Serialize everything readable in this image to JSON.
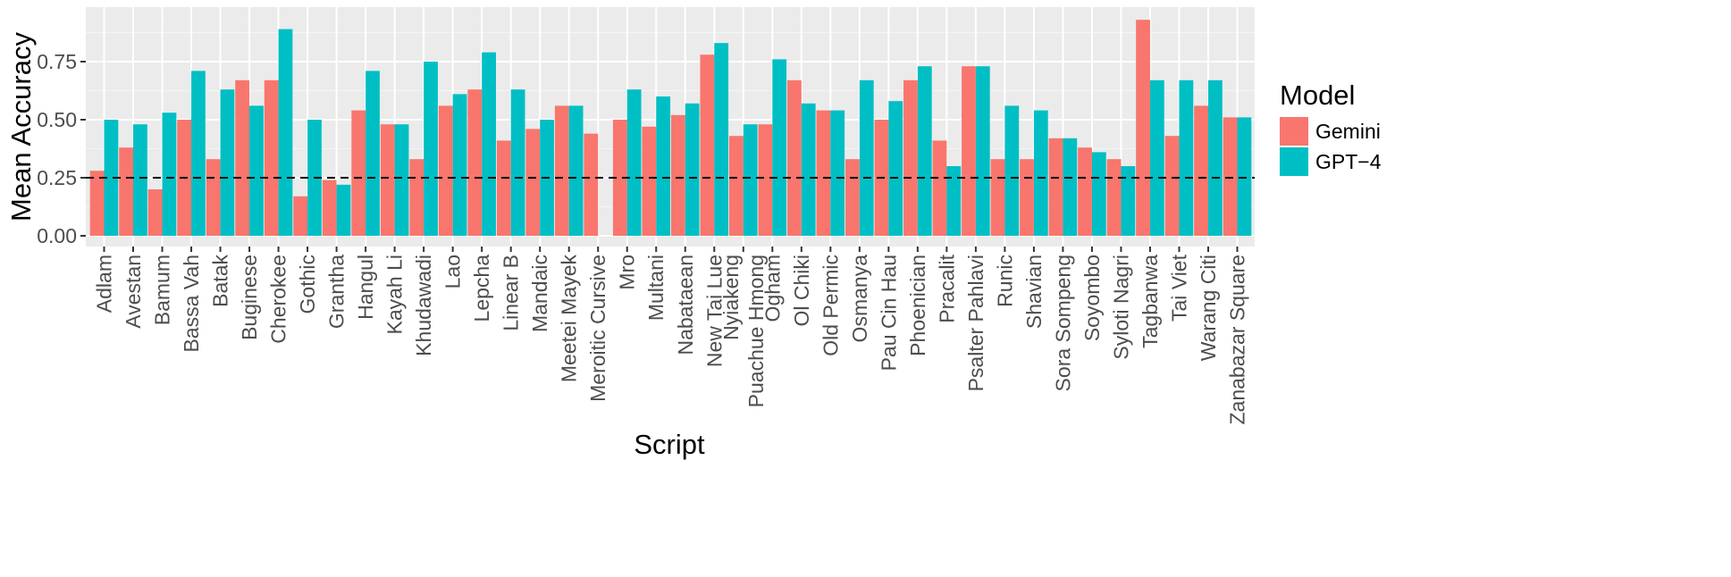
{
  "chart_data": {
    "type": "bar",
    "xlabel": "Script",
    "ylabel": "Mean Accuracy",
    "ylim": [
      -0.02,
      0.95
    ],
    "yticks": [
      0.0,
      0.25,
      0.5,
      0.75
    ],
    "ytick_labels": [
      "0.00",
      "0.25",
      "0.50",
      "0.75"
    ],
    "reference_line": 0.25,
    "grid": true,
    "legend_title": "Model",
    "legend_position": "right",
    "categories": [
      "Adlam",
      "Avestan",
      "Bamum",
      "Bassa Vah",
      "Batak",
      "Buginese",
      "Cherokee",
      "Gothic",
      "Grantha",
      "Hangul",
      "Kayah Li",
      "Khudawadi",
      "Lao",
      "Lepcha",
      "Linear B",
      "Mandaic",
      "Meetei Mayek",
      "Meroitic Cursive",
      "Mro",
      "Multani",
      "Nabataean",
      "New Tai Lue",
      "Nyiakeng Puachue Hmong",
      "Ogham",
      "Ol Chiki",
      "Old Permic",
      "Osmanya",
      "Pau Cin Hau",
      "Phoenician",
      "Pracalit",
      "Psalter Pahlavi",
      "Runic",
      "Shavian",
      "Sora Sompeng",
      "Soyombo",
      "Syloti Nagri",
      "Tagbanwa",
      "Tai Viet",
      "Warang Citi",
      "Zanabazar Square"
    ],
    "series": [
      {
        "name": "Gemini",
        "color": "#F8766D",
        "values": [
          0.28,
          0.38,
          0.2,
          0.5,
          0.33,
          0.67,
          0.67,
          0.17,
          0.24,
          0.54,
          0.48,
          0.33,
          0.56,
          0.63,
          0.41,
          0.46,
          0.56,
          0.44,
          0.5,
          0.47,
          0.52,
          0.78,
          0.43,
          0.48,
          0.67,
          0.54,
          0.33,
          0.5,
          0.67,
          0.41,
          0.73,
          0.33,
          0.33,
          0.42,
          0.38,
          0.33,
          0.93,
          0.43,
          0.56,
          0.51
        ]
      },
      {
        "name": "GPT−4",
        "color": "#00BFC4",
        "values": [
          0.5,
          0.48,
          0.53,
          0.71,
          0.63,
          0.56,
          0.89,
          0.5,
          0.22,
          0.71,
          0.48,
          0.75,
          0.61,
          0.79,
          0.63,
          0.5,
          0.56,
          0.0,
          0.63,
          0.6,
          0.57,
          0.83,
          0.48,
          0.76,
          0.57,
          0.54,
          0.67,
          0.58,
          0.73,
          0.3,
          0.73,
          0.56,
          0.54,
          0.42,
          0.36,
          0.3,
          0.67,
          0.67,
          0.67,
          0.51
        ]
      }
    ]
  }
}
